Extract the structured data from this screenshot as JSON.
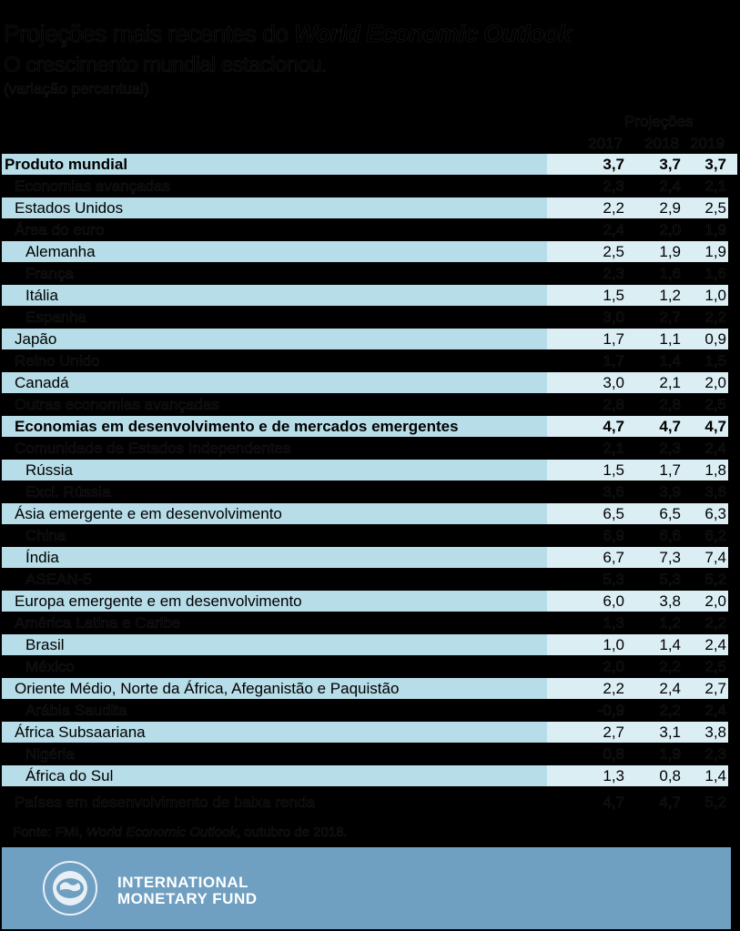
{
  "header": {
    "title_prefix": "Projeções mais recentes do ",
    "title_italic": "World Economic Outlook",
    "subtitle": "O crescimento mundial estacionou.",
    "unit": "(variação percentual)"
  },
  "columns": {
    "projections_label": "Projeções",
    "years": [
      "2017",
      "2018",
      "2019"
    ]
  },
  "rows": [
    {
      "label": "Produto mundial",
      "values": [
        "3,7",
        "3,7",
        "3,7"
      ],
      "indent": 0,
      "bold": true,
      "band": true
    },
    {
      "label": "Economias avançadas",
      "values": [
        "2,3",
        "2,4",
        "2,1"
      ],
      "indent": 1,
      "bold": false,
      "band": false
    },
    {
      "label": "Estados Unidos",
      "values": [
        "2,2",
        "2,9",
        "2,5"
      ],
      "indent": 1,
      "bold": false,
      "band": true
    },
    {
      "label": "Área do euro",
      "values": [
        "2,4",
        "2,0",
        "1,9"
      ],
      "indent": 1,
      "bold": false,
      "band": false
    },
    {
      "label": "Alemanha",
      "values": [
        "2,5",
        "1,9",
        "1,9"
      ],
      "indent": 2,
      "bold": false,
      "band": true
    },
    {
      "label": "França",
      "values": [
        "2,3",
        "1,6",
        "1,6"
      ],
      "indent": 2,
      "bold": false,
      "band": false
    },
    {
      "label": "Itália",
      "values": [
        "1,5",
        "1,2",
        "1,0"
      ],
      "indent": 2,
      "bold": false,
      "band": true
    },
    {
      "label": "Espanha",
      "values": [
        "3,0",
        "2,7",
        "2,2"
      ],
      "indent": 2,
      "bold": false,
      "band": false
    },
    {
      "label": "Japão",
      "values": [
        "1,7",
        "1,1",
        "0,9"
      ],
      "indent": 1,
      "bold": false,
      "band": true
    },
    {
      "label": "Reino Unido",
      "values": [
        "1,7",
        "1,4",
        "1,5"
      ],
      "indent": 1,
      "bold": false,
      "band": false
    },
    {
      "label": "Canadá",
      "values": [
        "3,0",
        "2,1",
        "2,0"
      ],
      "indent": 1,
      "bold": false,
      "band": true
    },
    {
      "label": "Outras economias avançadas",
      "values": [
        "2,8",
        "2,8",
        "2,5"
      ],
      "indent": 1,
      "bold": false,
      "band": false
    },
    {
      "label": "Economias em desenvolvimento e de mercados emergentes",
      "values": [
        "4,7",
        "4,7",
        "4,7"
      ],
      "indent": 1,
      "bold": true,
      "band": true
    },
    {
      "label": "Comunidade de Estados Independentes",
      "values": [
        "2,1",
        "2,3",
        "2,4"
      ],
      "indent": 1,
      "bold": false,
      "band": false
    },
    {
      "label": "Rússia",
      "values": [
        "1,5",
        "1,7",
        "1,8"
      ],
      "indent": 2,
      "bold": false,
      "band": true
    },
    {
      "label": "Excl. Rússia",
      "values": [
        "3,6",
        "3,9",
        "3,6"
      ],
      "indent": 2,
      "bold": false,
      "band": false
    },
    {
      "label": "Ásia emergente e em desenvolvimento",
      "values": [
        "6,5",
        "6,5",
        "6,3"
      ],
      "indent": 1,
      "bold": false,
      "band": true
    },
    {
      "label": "China",
      "values": [
        "6,9",
        "6,6",
        "6,2"
      ],
      "indent": 2,
      "bold": false,
      "band": false
    },
    {
      "label": "Índia",
      "values": [
        "6,7",
        "7,3",
        "7,4"
      ],
      "indent": 2,
      "bold": false,
      "band": true
    },
    {
      "label": "ASEAN-5",
      "values": [
        "5,3",
        "5,3",
        "5,2"
      ],
      "indent": 2,
      "bold": false,
      "band": false
    },
    {
      "label": "Europa emergente e em desenvolvimento",
      "values": [
        "6,0",
        "3,8",
        "2,0"
      ],
      "indent": 1,
      "bold": false,
      "band": true
    },
    {
      "label": "América Latina e Caribe",
      "values": [
        "1,3",
        "1,2",
        "2,2"
      ],
      "indent": 1,
      "bold": false,
      "band": false
    },
    {
      "label": "Brasil",
      "values": [
        "1,0",
        "1,4",
        "2,4"
      ],
      "indent": 2,
      "bold": false,
      "band": true
    },
    {
      "label": "México",
      "values": [
        "2,0",
        "2,2",
        "2,5"
      ],
      "indent": 2,
      "bold": false,
      "band": false
    },
    {
      "label": "Oriente Médio, Norte da África, Afeganistão e Paquistão",
      "values": [
        "2,2",
        "2,4",
        "2,7"
      ],
      "indent": 1,
      "bold": false,
      "band": true
    },
    {
      "label": "Arábia Saudita",
      "values": [
        "-0,9",
        "2,2",
        "2,4"
      ],
      "indent": 2,
      "bold": false,
      "band": false
    },
    {
      "label": "África Subsaariana",
      "values": [
        "2,7",
        "3,1",
        "3,8"
      ],
      "indent": 1,
      "bold": false,
      "band": true
    },
    {
      "label": "Nigéria",
      "values": [
        "0,8",
        "1,9",
        "2,3"
      ],
      "indent": 2,
      "bold": false,
      "band": false
    },
    {
      "label": "África do Sul",
      "values": [
        "1,3",
        "0,8",
        "1,4"
      ],
      "indent": 2,
      "bold": false,
      "band": true
    },
    {
      "label": "Países em desenvolvimento de baixa renda",
      "values": [
        "4,7",
        "4,7",
        "5,2"
      ],
      "indent": 1,
      "bold": false,
      "band": false
    }
  ],
  "source": {
    "prefix": "Fonte: FMI, ",
    "italic": "World Economic Outlook",
    "suffix": ", outubro de 2018."
  },
  "footer": {
    "logo_line1": "INTERNATIONAL",
    "logo_line2": "MONETARY FUND",
    "seal_icon": "imf-seal-icon",
    "banner_color": "#6f9fc1"
  },
  "colors": {
    "label_band": "#b7dde8",
    "number_band": "#dbeef4",
    "background": "#000000"
  }
}
